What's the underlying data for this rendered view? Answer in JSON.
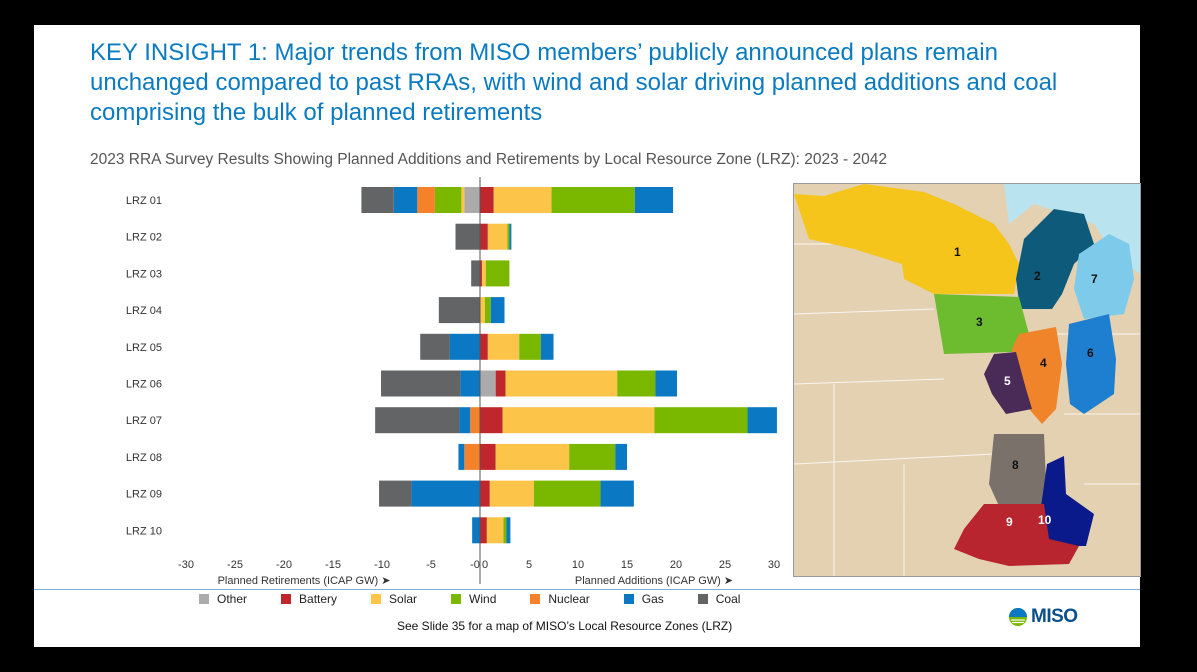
{
  "slide": {
    "title": "KEY INSIGHT 1: Major trends from MISO members’ publicly announced plans remain unchanged compared to past RRAs, with wind and solar driving planned additions and coal comprising the bulk of planned retirements",
    "subtitle": "2023 RRA Survey Results Showing Planned Additions and Retirements by Local Resource Zone (LRZ): 2023 - 2042",
    "footnote": "See Slide 35 for a map of MISO’s Local Resource Zones (LRZ)",
    "logo_text": "MISO"
  },
  "chart_data": {
    "type": "bar",
    "orientation": "horizontal-stacked-diverging",
    "categories": [
      "LRZ 01",
      "LRZ 02",
      "LRZ 03",
      "LRZ 04",
      "LRZ 05",
      "LRZ 06",
      "LRZ 07",
      "LRZ 08",
      "LRZ 09",
      "LRZ 10"
    ],
    "xlabel_left": "Planned Retirements (ICAP GW)",
    "xlabel_right": "Planned Additions (ICAP GW)",
    "xlim": [
      -30,
      30
    ],
    "xticks": [
      "-30",
      "-25",
      "-20",
      "-15",
      "-10",
      "-5",
      "-0",
      "0",
      "5",
      "10",
      "15",
      "20",
      "25",
      "30"
    ],
    "xtick_values": [
      -30,
      -25,
      -20,
      -15,
      -10,
      -5,
      -0.01,
      0.01,
      5,
      10,
      15,
      20,
      25,
      30
    ],
    "grid": false,
    "legend_position": "bottom",
    "series_order": [
      "Other",
      "Battery",
      "Solar",
      "Wind",
      "Nuclear",
      "Gas",
      "Coal"
    ],
    "colors": {
      "Other": "#ababab",
      "Battery": "#c0272d",
      "Solar": "#fcc54a",
      "Wind": "#7ab800",
      "Nuclear": "#f5822a",
      "Gas": "#0a78c2",
      "Coal": "#636466"
    },
    "retirements": [
      {
        "Other": 1.6,
        "Solar": 0.3,
        "Wind": 2.7,
        "Nuclear": 1.8,
        "Gas": 2.4,
        "Coal": 3.3
      },
      {
        "Coal": 2.5
      },
      {
        "Coal": 0.9
      },
      {
        "Coal": 4.2
      },
      {
        "Gas": 3.1,
        "Coal": 3.0
      },
      {
        "Gas": 2.0,
        "Coal": 8.1
      },
      {
        "Nuclear": 1.0,
        "Gas": 1.1,
        "Coal": 8.6
      },
      {
        "Nuclear": 1.6,
        "Gas": 0.6
      },
      {
        "Gas": 7.0,
        "Coal": 3.3
      },
      {
        "Gas": 0.8
      }
    ],
    "additions": [
      {
        "Battery": 1.4,
        "Solar": 5.9,
        "Wind": 8.5,
        "Gas": 3.9
      },
      {
        "Battery": 0.8,
        "Solar": 2.0,
        "Wind": 0.2,
        "Gas": 0.2
      },
      {
        "Battery": 0.2,
        "Solar": 0.4,
        "Wind": 2.4
      },
      {
        "Solar": 0.5,
        "Wind": 0.6,
        "Gas": 1.4
      },
      {
        "Battery": 0.8,
        "Solar": 3.2,
        "Wind": 2.2,
        "Gas": 1.3
      },
      {
        "Other": 1.6,
        "Battery": 1.0,
        "Solar": 11.4,
        "Wind": 3.9,
        "Gas": 2.2
      },
      {
        "Battery": 2.3,
        "Solar": 15.5,
        "Wind": 9.5,
        "Gas": 3.0
      },
      {
        "Battery": 1.6,
        "Solar": 7.5,
        "Wind": 4.7,
        "Gas": 1.2
      },
      {
        "Battery": 1.0,
        "Solar": 4.5,
        "Wind": 6.8,
        "Gas": 3.4
      },
      {
        "Battery": 0.7,
        "Solar": 1.7,
        "Wind": 0.3,
        "Gas": 0.4
      }
    ]
  },
  "map": {
    "zone_labels": [
      "1",
      "2",
      "3",
      "4",
      "5",
      "6",
      "7",
      "8",
      "9",
      "10"
    ],
    "zone_colors": [
      "#f6c51b",
      "#0d5a7a",
      "#6dbb2f",
      "#f0842a",
      "#4a2a57",
      "#1e7fd0",
      "#7ecaeb",
      "#7a716a",
      "#b8252f",
      "#0a1a8a"
    ]
  }
}
